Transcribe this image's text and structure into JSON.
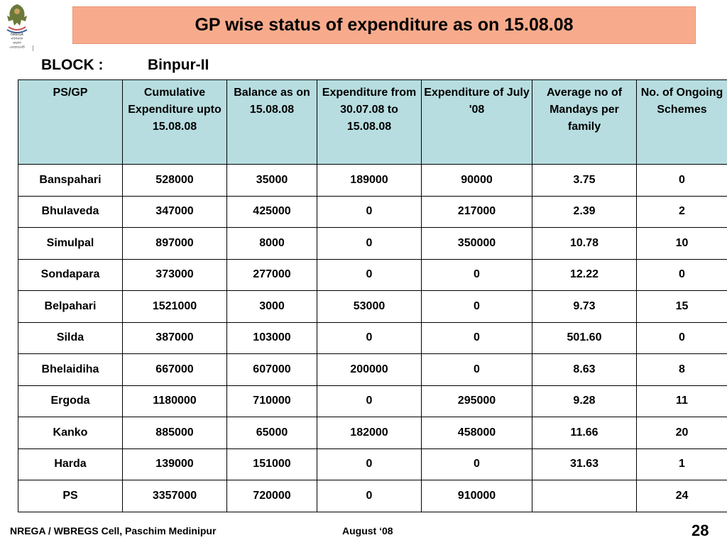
{
  "logo": {
    "icon": "nrega-emblem-icon",
    "caption_lines": [
      "NREGA",
      "ন্যাশনাল",
      "রুরাল",
      "এমপ্লয়মেন্ট"
    ]
  },
  "title": "GP wise status of expenditure as on 15.08.08",
  "block": {
    "label": "BLOCK :",
    "value": "Binpur-II"
  },
  "table": {
    "headers": [
      "PS/GP",
      "Cumulative Expenditure upto 15.08.08",
      "Balance as on 15.08.08",
      "Expenditure from 30.07.08 to 15.08.08",
      "Expenditure of  July '08",
      "Average no of Mandays per family",
      "No. of Ongoing Schemes"
    ],
    "rows": [
      [
        "Banspahari",
        "528000",
        "35000",
        "189000",
        "90000",
        "3.75",
        "0"
      ],
      [
        "Bhulaveda",
        "347000",
        "425000",
        "0",
        "217000",
        "2.39",
        "2"
      ],
      [
        "Simulpal",
        "897000",
        "8000",
        "0",
        "350000",
        "10.78",
        "10"
      ],
      [
        "Sondapara",
        "373000",
        "277000",
        "0",
        "0",
        "12.22",
        "0"
      ],
      [
        "Belpahari",
        "1521000",
        "3000",
        "53000",
        "0",
        "9.73",
        "15"
      ],
      [
        "Silda",
        "387000",
        "103000",
        "0",
        "0",
        "501.60",
        "0"
      ],
      [
        "Bhelaidiha",
        "667000",
        "607000",
        "200000",
        "0",
        "8.63",
        "8"
      ],
      [
        "Ergoda",
        "1180000",
        "710000",
        "0",
        "295000",
        "9.28",
        "11"
      ],
      [
        "Kanko",
        "885000",
        "65000",
        "182000",
        "458000",
        "11.66",
        "20"
      ],
      [
        "Harda",
        "139000",
        "151000",
        "0",
        "0",
        "31.63",
        "1"
      ],
      [
        "PS",
        "3357000",
        "720000",
        "0",
        "910000",
        "",
        "24"
      ]
    ]
  },
  "footer": {
    "left": "NREGA / WBREGS Cell, Paschim Medinipur",
    "middle": "August ‘08",
    "page": "28"
  },
  "colors": {
    "title_bg": "#f8ab8c",
    "header_bg": "#b7dde0"
  }
}
